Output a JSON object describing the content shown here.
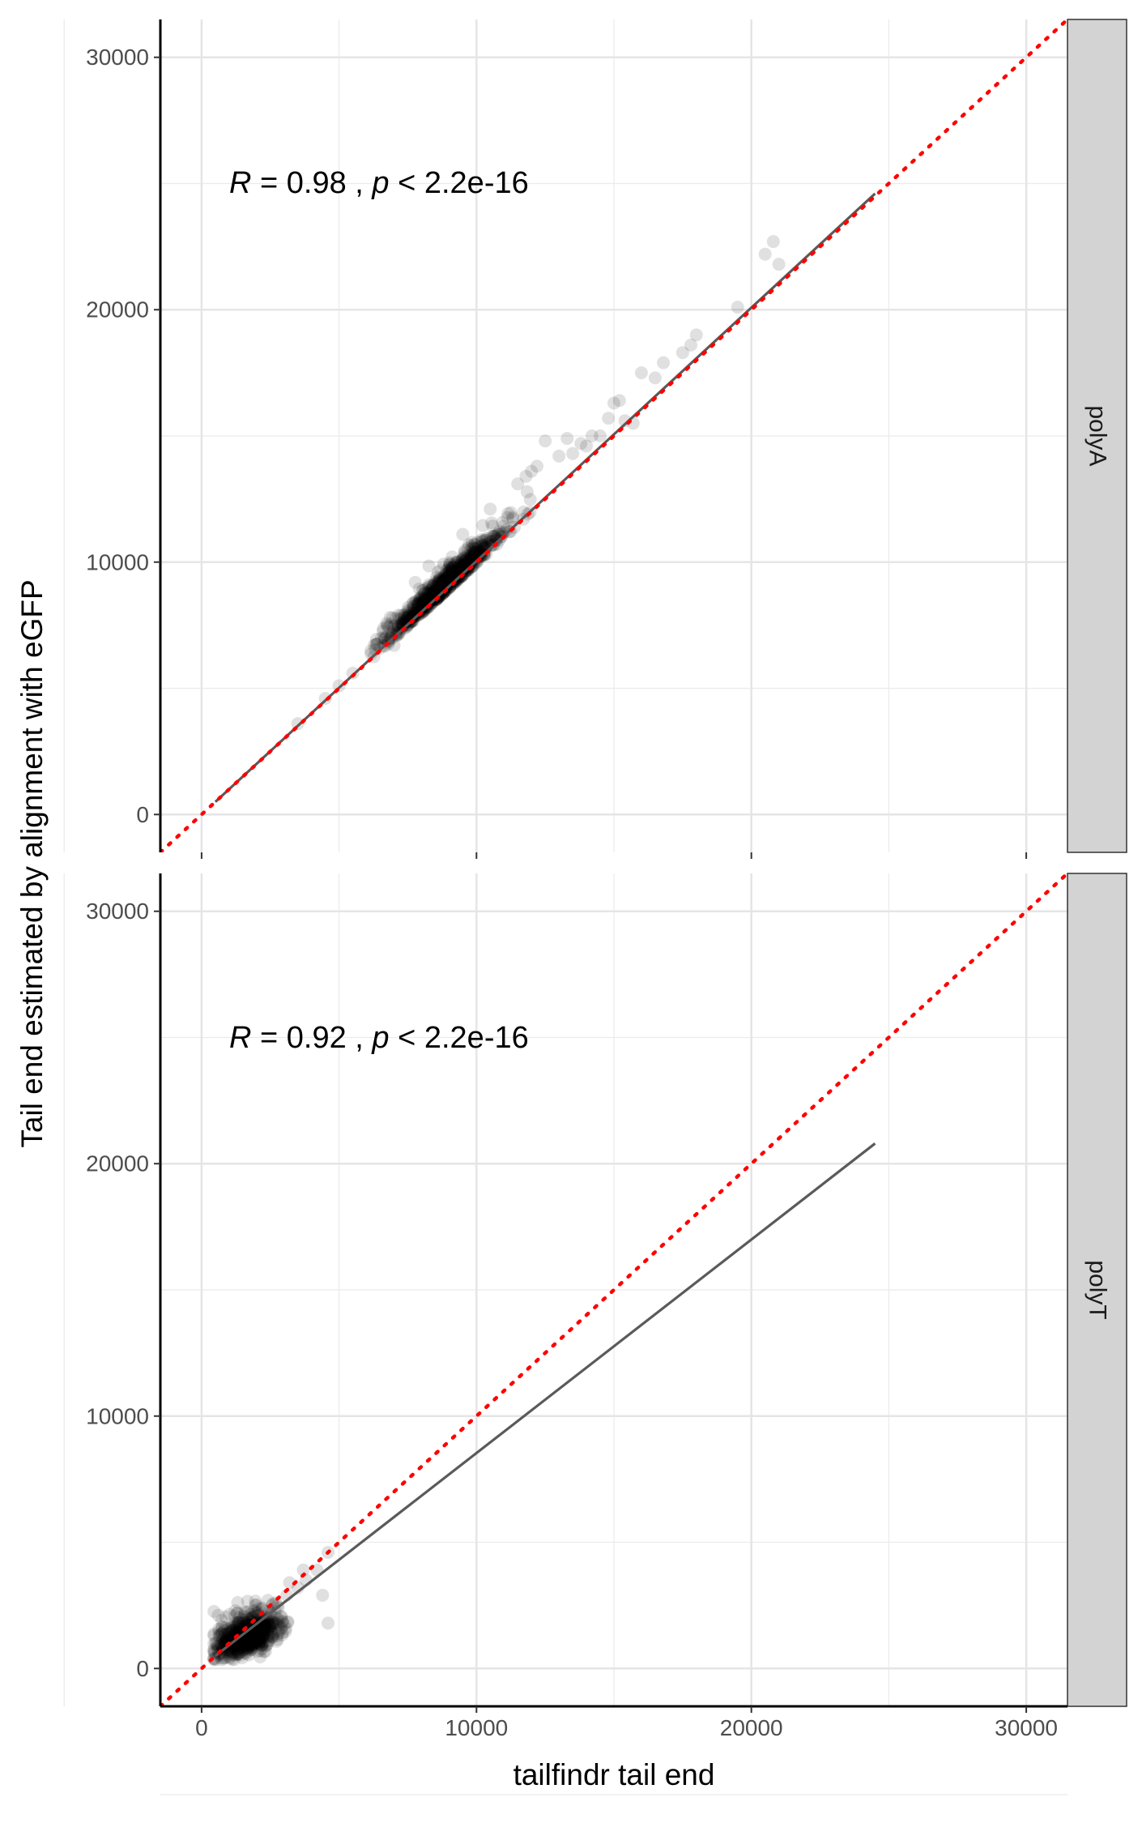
{
  "chart_data": {
    "type": "scatter",
    "xlabel": "tailfindr tail end",
    "ylabel": "Tail end estimated by alignment with eGFP",
    "xlim": [
      -1500,
      31500
    ],
    "ylim": [
      -1500,
      31500
    ],
    "x_ticks": [
      "0",
      "10000",
      "20000",
      "30000"
    ],
    "y_ticks": [
      "0",
      "10000",
      "20000",
      "30000"
    ],
    "grid": true,
    "reference_line": {
      "type": "identity",
      "style": "dotted",
      "color": "#ff0000"
    },
    "panels": [
      {
        "strip": "polyA",
        "annotation": {
          "r_sym": "R",
          "r_val": " = 0.98 , ",
          "p_sym": "p",
          "p_val": " < 2.2e-16"
        },
        "fit_line": {
          "x": [
            500,
            24500
          ],
          "y": [
            500,
            24600
          ]
        },
        "points_cluster": {
          "x_center": 8800,
          "y_center": 8900,
          "x_range": [
            6000,
            12500
          ]
        },
        "outliers": [
          [
            20500,
            22200
          ],
          [
            20800,
            22700
          ],
          [
            21000,
            21800
          ],
          [
            18000,
            19000
          ],
          [
            17800,
            18600
          ],
          [
            17500,
            18300
          ],
          [
            16000,
            17500
          ],
          [
            16500,
            17300
          ],
          [
            15000,
            16300
          ],
          [
            14800,
            15700
          ],
          [
            15400,
            15600
          ],
          [
            15700,
            15500
          ],
          [
            14500,
            15000
          ],
          [
            13800,
            14700
          ],
          [
            14000,
            14600
          ],
          [
            13500,
            14300
          ],
          [
            12500,
            14800
          ],
          [
            13000,
            14200
          ],
          [
            11500,
            13100
          ],
          [
            12000,
            13600
          ],
          [
            11800,
            13400
          ],
          [
            12200,
            13800
          ],
          [
            9500,
            11100
          ],
          [
            10500,
            12100
          ],
          [
            14200,
            15000
          ],
          [
            3500,
            3600
          ],
          [
            4500,
            4600
          ],
          [
            5000,
            5100
          ],
          [
            5500,
            5600
          ],
          [
            7000,
            6700
          ],
          [
            6500,
            6600
          ],
          [
            13300,
            14900
          ],
          [
            15200,
            16400
          ],
          [
            16800,
            17900
          ],
          [
            19500,
            20100
          ]
        ]
      },
      {
        "strip": "polyT",
        "annotation": {
          "r_sym": "R",
          "r_val": " = 0.92 , ",
          "p_sym": "p",
          "p_val": " < 2.2e-16"
        },
        "fit_line": {
          "x": [
            500,
            24500
          ],
          "y": [
            500,
            20800
          ]
        },
        "points_cluster": {
          "x_center": 1800,
          "y_center": 1300,
          "x_range": [
            400,
            4000
          ]
        },
        "outliers": [
          [
            4200,
            3900
          ],
          [
            4600,
            4600
          ],
          [
            3800,
            3500
          ],
          [
            3500,
            3200
          ],
          [
            4600,
            1800
          ],
          [
            4400,
            2900
          ],
          [
            3700,
            3900
          ],
          [
            3200,
            3400
          ],
          [
            3100,
            2900
          ],
          [
            2700,
            2600
          ]
        ]
      }
    ]
  }
}
